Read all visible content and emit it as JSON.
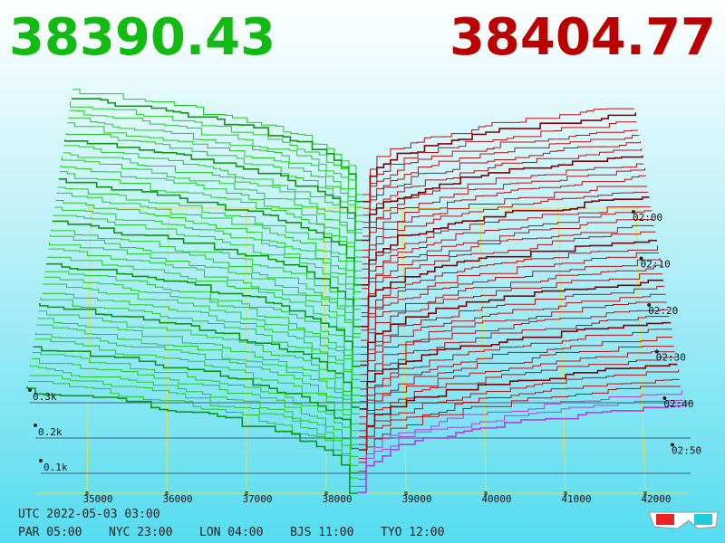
{
  "header": {
    "bid": "38390.43",
    "ask": "38404.77"
  },
  "price_axis": [
    "35000",
    "36000",
    "37000",
    "38000",
    "39000",
    "40000",
    "41000",
    "42000"
  ],
  "depth_axis": [
    "0.3k",
    "0.2k",
    "0.1k"
  ],
  "time_axis": [
    "02:00",
    "02:10",
    "02:20",
    "02:30",
    "02:40",
    "02:50"
  ],
  "footer": {
    "utc": "UTC 2022-05-03 03:00",
    "zones": [
      "PAR 05:00",
      "NYC 23:00",
      "LON 04:00",
      "BJS 11:00",
      "TYO 12:00"
    ]
  }
}
